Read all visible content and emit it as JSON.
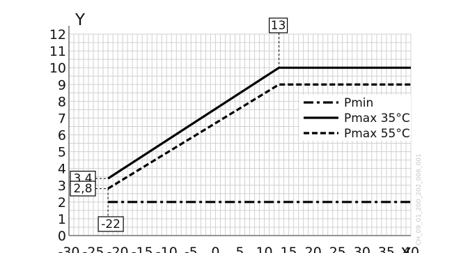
{
  "chart_data": {
    "type": "line",
    "xlabel": "X",
    "ylabel": "Y",
    "xlim": [
      -30,
      40
    ],
    "ylim": [
      0,
      12
    ],
    "x_ticks": [
      -30,
      -25,
      -20,
      -15,
      -10,
      -5,
      0,
      5,
      10,
      15,
      20,
      25,
      30,
      35,
      40
    ],
    "x_tick_labels": [
      "-30",
      "-25",
      "-20",
      "-15",
      "-10",
      "-5",
      "0",
      "5",
      "10",
      "15",
      "20",
      "25",
      "30",
      "35",
      "40"
    ],
    "y_ticks": [
      0,
      1,
      2,
      3,
      4,
      5,
      6,
      7,
      8,
      9,
      10,
      11,
      12
    ],
    "y_tick_labels": [
      "0",
      "1",
      "2",
      "3",
      "4",
      "5",
      "6",
      "7",
      "8",
      "9",
      "10",
      "11",
      "12"
    ],
    "grid": true,
    "legend_position": "right",
    "series": [
      {
        "name": "Pmin",
        "style": "dashdot",
        "x": [
          -22,
          40
        ],
        "y": [
          2,
          2
        ]
      },
      {
        "name": "Pmax 35°C",
        "style": "solid",
        "x": [
          -22,
          13,
          40
        ],
        "y": [
          3.4,
          10,
          10
        ]
      },
      {
        "name": "Pmax 55°C",
        "style": "dashed",
        "x": [
          -22,
          13,
          40
        ],
        "y": [
          2.8,
          9,
          9
        ]
      }
    ],
    "annotations": [
      {
        "text": "13",
        "x": 13,
        "y": 10
      },
      {
        "text": "3,4",
        "x": -22,
        "y": 3.4
      },
      {
        "text": "2,8",
        "x": -22,
        "y": 2.8
      },
      {
        "text": "-22",
        "x": -22,
        "y": 0
      }
    ]
  },
  "watermark": "CH_09_01_200_202_006_001",
  "colors": {
    "line": "#000000",
    "grid": "#d0d0d0",
    "axis": "#707070"
  }
}
